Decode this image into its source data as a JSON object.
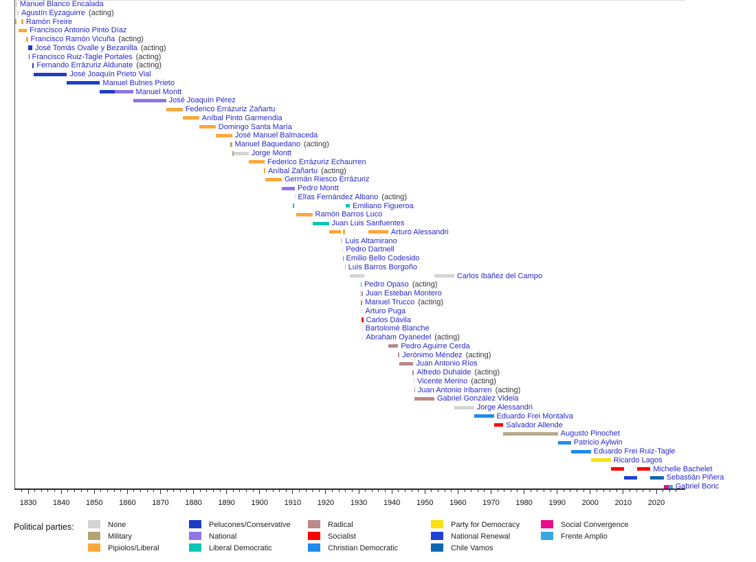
{
  "parties": {
    "none": {
      "label": "None",
      "color": "#d4d4d4"
    },
    "military": {
      "label": "Military",
      "color": "#b3a474",
      "bar_color": "#b7aa89"
    },
    "liberal": {
      "label": "Pipiolos/Liberal",
      "color": "#fba73d"
    },
    "conservative": {
      "label": "Pelucones/Conservative",
      "color": "#1d3ec4"
    },
    "national": {
      "label": "National",
      "color": "#8f75e5"
    },
    "libdem": {
      "label": "Liberal Democratic",
      "color": "#0cc5b4"
    },
    "radical": {
      "label": "Radical",
      "color": "#bc8888"
    },
    "socialist": {
      "label": "Socialist",
      "color": "#fe0000"
    },
    "cdem": {
      "label": "Christian Democratic",
      "color": "#1e8bf0"
    },
    "ppd": {
      "label": "Party for Democracy",
      "color": "#fbdf0f"
    },
    "rn": {
      "label": "National Renewal",
      "color": "#1e42d6"
    },
    "chilevamos": {
      "label": "Chile Vamos",
      "color": "#1069b0"
    },
    "socialconv": {
      "label": "Social Convergence",
      "color": "#ea0e8e"
    },
    "fa": {
      "label": "Frente Amplio",
      "color": "#38a6e0"
    }
  },
  "legend": {
    "title": "Political parties:",
    "columns": [
      [
        "none",
        "military",
        "liberal"
      ],
      [
        "conservative",
        "national",
        "libdem"
      ],
      [
        "radical",
        "socialist",
        "cdem"
      ],
      [
        "ppd",
        "rn",
        "chilevamos"
      ],
      [
        "socialconv",
        "fa"
      ]
    ]
  },
  "axis": {
    "decade_labels": [
      1830,
      1840,
      1850,
      1860,
      1870,
      1880,
      1890,
      1900,
      1910,
      1920,
      1930,
      1940,
      1950,
      1960,
      1970,
      1980,
      1990,
      2000,
      2010,
      2020
    ],
    "minor_from": 1828,
    "minor_to": 2026,
    "minor_step": 2
  },
  "chart_data": {
    "type": "timeline-bar",
    "title": "Presidents of Chile timeline",
    "presidents": [
      {
        "name": "Manuel Blanco Encalada",
        "terms": [
          {
            "from": 1826.3,
            "to": 1826.65,
            "party": "none"
          }
        ]
      },
      {
        "name": "Agustín Eyzaguirre",
        "acting": true,
        "terms": [
          {
            "from": 1826.69,
            "to": 1827.08,
            "party": "none"
          }
        ]
      },
      {
        "name": "Ramón Freire",
        "terms": [
          {
            "from": 1826.0,
            "to": 1826.52,
            "party": "liberal"
          },
          {
            "from": 1828.0,
            "to": 1828.5,
            "party": "liberal"
          }
        ]
      },
      {
        "name": "Francisco Antonio Pinto Díaz",
        "terms": [
          {
            "from": 1827.0,
            "to": 1829.6,
            "party": "liberal"
          }
        ]
      },
      {
        "name": "Francisco Ramón Vicuña",
        "acting": true,
        "terms": [
          {
            "from": 1829.4,
            "to": 1829.9,
            "party": "liberal"
          }
        ]
      },
      {
        "name": "José Tomás Ovalle y Bezanilla",
        "acting": true,
        "terms": [
          {
            "from": 1829.95,
            "to": 1831.2,
            "party": "conservative",
            "h": 7
          }
        ]
      },
      {
        "name": "Francisco Ruiz-Tagle Portales",
        "acting": true,
        "terms": [
          {
            "from": 1830.1,
            "to": 1830.3,
            "party": "conservative"
          }
        ]
      },
      {
        "name": "Fernando Errázuriz Aldunate",
        "acting": true,
        "terms": [
          {
            "from": 1831.2,
            "to": 1831.7,
            "party": "conservative"
          }
        ]
      },
      {
        "name": "José Joaquín Prieto Vial",
        "terms": [
          {
            "from": 1831.7,
            "to": 1841.7,
            "party": "conservative"
          }
        ]
      },
      {
        "name": "Manuel Bulnes Prieto",
        "terms": [
          {
            "from": 1841.7,
            "to": 1851.7,
            "party": "conservative"
          }
        ]
      },
      {
        "name": "Manuel Montt",
        "terms": [
          {
            "from": 1851.7,
            "to": 1856.2,
            "party": "conservative"
          },
          {
            "from": 1856.2,
            "to": 1861.7,
            "party": "national"
          }
        ]
      },
      {
        "name": "José Joaquín Pérez",
        "terms": [
          {
            "from": 1861.7,
            "to": 1871.7,
            "party": "national"
          }
        ]
      },
      {
        "name": "Federico Errázuriz Zañartu",
        "terms": [
          {
            "from": 1871.7,
            "to": 1876.7,
            "party": "liberal"
          }
        ]
      },
      {
        "name": "Aníbal Pinto Garmendia",
        "terms": [
          {
            "from": 1876.7,
            "to": 1881.7,
            "party": "liberal"
          }
        ]
      },
      {
        "name": "Domingo Santa María",
        "terms": [
          {
            "from": 1881.7,
            "to": 1886.7,
            "party": "liberal"
          }
        ]
      },
      {
        "name": "José Manuel Balmaceda",
        "terms": [
          {
            "from": 1886.7,
            "to": 1891.7,
            "party": "liberal"
          }
        ]
      },
      {
        "name": "Manuel Baquedano",
        "acting": true,
        "terms": [
          {
            "from": 1891.2,
            "to": 1891.65,
            "party": "military"
          }
        ]
      },
      {
        "name": "Jorge Montt",
        "terms": [
          {
            "from": 1891.7,
            "to": 1892.2,
            "party": "military"
          },
          {
            "from": 1892.2,
            "to": 1896.7,
            "party": "none"
          }
        ]
      },
      {
        "name": "Federico Errázuriz Echaurren",
        "terms": [
          {
            "from": 1896.7,
            "to": 1901.5,
            "party": "liberal"
          }
        ]
      },
      {
        "name": "Aníbal Zañartu",
        "acting": true,
        "terms": [
          {
            "from": 1901.35,
            "to": 1901.7,
            "party": "liberal"
          }
        ]
      },
      {
        "name": "Germán Riesco Errázuriz",
        "terms": [
          {
            "from": 1901.7,
            "to": 1906.7,
            "party": "liberal"
          }
        ]
      },
      {
        "name": "Pedro Montt",
        "terms": [
          {
            "from": 1906.7,
            "to": 1910.62,
            "party": "national"
          }
        ]
      },
      {
        "name": "Elías Fernández Albano",
        "acting": true,
        "terms": [
          {
            "from": 1910.55,
            "to": 1910.72,
            "party": "none"
          }
        ]
      },
      {
        "name": "Emiliano Figueroa",
        "terms": [
          {
            "from": 1910.05,
            "to": 1910.35,
            "party": "libdem"
          },
          {
            "from": 1925.96,
            "to": 1927.3,
            "party": "libdem"
          }
        ]
      },
      {
        "name": "Ramón Barros Luco",
        "terms": [
          {
            "from": 1910.96,
            "to": 1915.96,
            "party": "liberal"
          }
        ]
      },
      {
        "name": "Juan Luis Sanfuentes",
        "terms": [
          {
            "from": 1915.96,
            "to": 1920.96,
            "party": "libdem"
          }
        ]
      },
      {
        "name": "Arturo Alessandri",
        "terms": [
          {
            "from": 1920.96,
            "to": 1924.67,
            "party": "liberal"
          },
          {
            "from": 1925.2,
            "to": 1925.75,
            "party": "liberal"
          },
          {
            "from": 1932.92,
            "to": 1938.9,
            "party": "liberal"
          }
        ]
      },
      {
        "name": "Luis Altamirano",
        "terms": [
          {
            "from": 1924.67,
            "to": 1925.07,
            "party": "none"
          }
        ]
      },
      {
        "name": "Pedro Dartnell",
        "terms": [
          {
            "from": 1925.05,
            "to": 1925.15,
            "party": "none"
          }
        ]
      },
      {
        "name": "Emilio Bello Codesido",
        "terms": [
          {
            "from": 1925.1,
            "to": 1925.3,
            "party": "libdem"
          }
        ]
      },
      {
        "name": "Luis Barros Borgoño",
        "terms": [
          {
            "from": 1925.75,
            "to": 1925.96,
            "party": "liberal"
          }
        ]
      },
      {
        "name": "Carlos Ibáñez del Campo",
        "terms": [
          {
            "from": 1927.3,
            "to": 1931.57,
            "party": "none"
          },
          {
            "from": 1952.84,
            "to": 1958.84,
            "party": "none"
          }
        ]
      },
      {
        "name": "Pedro Opaso",
        "acting": true,
        "terms": [
          {
            "from": 1930.6,
            "to": 1930.75,
            "party": "libdem"
          }
        ]
      },
      {
        "name": "Juan Esteban Montero",
        "terms": [
          {
            "from": 1930.45,
            "to": 1930.6,
            "party": "none"
          },
          {
            "from": 1930.9,
            "to": 1931.25,
            "party": "radical"
          }
        ]
      },
      {
        "name": "Manuel Trucco",
        "acting": true,
        "terms": [
          {
            "from": 1930.7,
            "to": 1931.05,
            "party": "radical"
          }
        ]
      },
      {
        "name": "Arturo Puga",
        "terms": [
          {
            "from": 1930.9,
            "to": 1931.1,
            "party": "none"
          }
        ]
      },
      {
        "name": "Carlos Dávila",
        "terms": [
          {
            "from": 1930.85,
            "to": 1931.35,
            "party": "socialist"
          }
        ]
      },
      {
        "name": "Bartolomé Blanche",
        "terms": [
          {
            "from": 1930.95,
            "to": 1931.15,
            "party": "none"
          }
        ]
      },
      {
        "name": "Abraham Oyanedel",
        "acting": true,
        "terms": [
          {
            "from": 1931.1,
            "to": 1931.3,
            "party": "none"
          }
        ]
      },
      {
        "name": "Pedro Aguirre Cerda",
        "terms": [
          {
            "from": 1938.9,
            "to": 1941.9,
            "party": "radical"
          }
        ]
      },
      {
        "name": "Jerónimo Méndez",
        "acting": true,
        "terms": [
          {
            "from": 1941.9,
            "to": 1942.3,
            "party": "radical"
          }
        ]
      },
      {
        "name": "Juan Antonio Ríos",
        "terms": [
          {
            "from": 1942.3,
            "to": 1946.5,
            "party": "radical"
          }
        ]
      },
      {
        "name": "Alfredo Duhalde",
        "acting": true,
        "terms": [
          {
            "from": 1946.2,
            "to": 1946.7,
            "party": "radical"
          }
        ]
      },
      {
        "name": "Vicente Merino",
        "acting": true,
        "terms": [
          {
            "from": 1946.62,
            "to": 1946.72,
            "party": "none"
          }
        ]
      },
      {
        "name": "Juan Antonio Iribarren",
        "acting": true,
        "terms": [
          {
            "from": 1946.8,
            "to": 1946.9,
            "party": "radical"
          }
        ]
      },
      {
        "name": "Gabriel González Videla",
        "terms": [
          {
            "from": 1946.9,
            "to": 1952.84,
            "party": "radical"
          }
        ]
      },
      {
        "name": "Jorge Alessandri",
        "terms": [
          {
            "from": 1958.84,
            "to": 1964.84,
            "party": "none"
          }
        ]
      },
      {
        "name": "Eduardo Frei Montalva",
        "terms": [
          {
            "from": 1964.84,
            "to": 1970.84,
            "party": "cdem"
          }
        ]
      },
      {
        "name": "Salvador Allende",
        "terms": [
          {
            "from": 1970.84,
            "to": 1973.7,
            "party": "socialist"
          }
        ]
      },
      {
        "name": "Augusto Pinochet",
        "terms": [
          {
            "from": 1973.7,
            "to": 1990.2,
            "party": "military"
          }
        ]
      },
      {
        "name": "Patricio Aylwin",
        "terms": [
          {
            "from": 1990.2,
            "to": 1994.2,
            "party": "cdem"
          }
        ]
      },
      {
        "name": "Eduardo Frei Ruiz-Tagle",
        "terms": [
          {
            "from": 1994.2,
            "to": 2000.2,
            "party": "cdem"
          }
        ]
      },
      {
        "name": "Ricardo Lagos",
        "terms": [
          {
            "from": 2000.2,
            "to": 2006.2,
            "party": "ppd"
          }
        ]
      },
      {
        "name": "Michelle Bachelet",
        "terms": [
          {
            "from": 2006.2,
            "to": 2010.2,
            "party": "socialist"
          },
          {
            "from": 2014.2,
            "to": 2018.2,
            "party": "socialist"
          }
        ]
      },
      {
        "name": "Sebastián Piñera",
        "terms": [
          {
            "from": 2010.2,
            "to": 2014.2,
            "party": "rn"
          },
          {
            "from": 2018.2,
            "to": 2022.2,
            "party": "chilevamos"
          }
        ]
      },
      {
        "name": "Gabriel Boric",
        "terms": [
          {
            "from": 2022.2,
            "to": 2023.7,
            "party": "socialconv"
          },
          {
            "from": 2023.7,
            "to": 2024.9,
            "party": "fa"
          }
        ]
      }
    ],
    "acting_suffix": " (acting)"
  }
}
